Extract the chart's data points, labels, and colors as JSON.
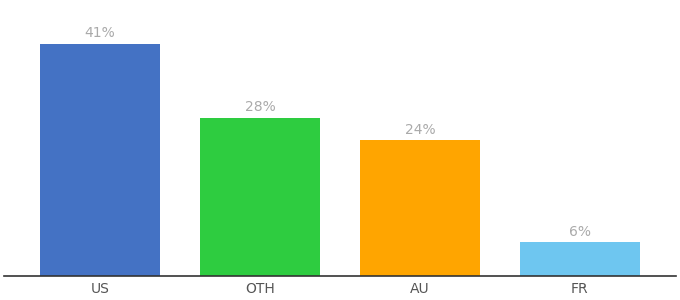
{
  "categories": [
    "US",
    "OTH",
    "AU",
    "FR"
  ],
  "values": [
    41,
    28,
    24,
    6
  ],
  "bar_colors": [
    "#4472c4",
    "#2ecc40",
    "#ffa500",
    "#6ec6f0"
  ],
  "labels": [
    "41%",
    "28%",
    "24%",
    "6%"
  ],
  "label_color": "#aaaaaa",
  "background_color": "#ffffff",
  "ylim": [
    0,
    48
  ],
  "bar_width": 0.75,
  "label_fontsize": 10,
  "tick_fontsize": 10
}
